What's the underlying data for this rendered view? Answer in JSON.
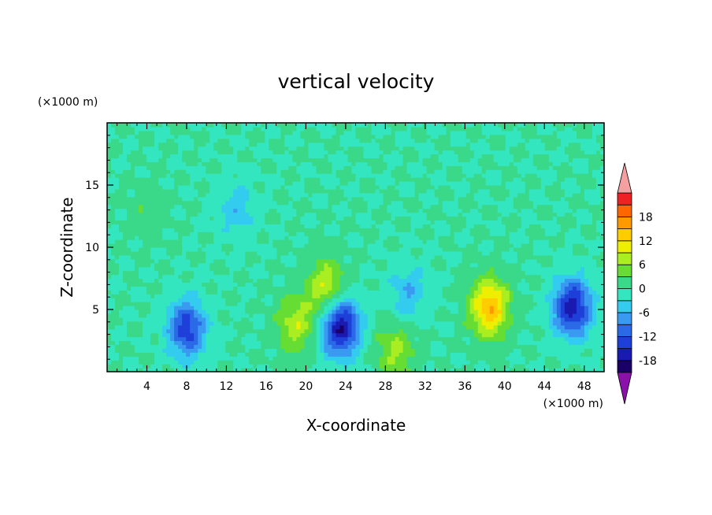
{
  "chart_data": {
    "type": "heatmap",
    "title": "vertical velocity",
    "xlabel": "X-coordinate",
    "ylabel": "Z-coordinate",
    "x_unit": "(×1000 m)",
    "y_unit": "(×1000 m)",
    "xlim": [
      0,
      50
    ],
    "ylim": [
      0,
      20
    ],
    "x_ticks": [
      "4",
      "8",
      "12",
      "16",
      "20",
      "24",
      "28",
      "32",
      "36",
      "40",
      "44",
      "48"
    ],
    "y_ticks": [
      "5",
      "10",
      "15"
    ],
    "colorbar": {
      "ticks": [
        "18",
        "12",
        "6",
        "0",
        "-6",
        "-12",
        "-18"
      ],
      "levels": [
        -21,
        -18,
        -15,
        -12,
        -9,
        -6,
        -3,
        0,
        3,
        6,
        9,
        12,
        15,
        18,
        21
      ],
      "colors": [
        "#1a0066",
        "#1a1ab0",
        "#1f3fd9",
        "#2a6ae6",
        "#3a99f0",
        "#33ccee",
        "#33e6bf",
        "#3ad98a",
        "#66dd33",
        "#aaee22",
        "#eeee00",
        "#ffcc00",
        "#ff9900",
        "#ff6600",
        "#ee2222"
      ],
      "under_color": "#8a12a8",
      "over_color": "#f5a0a0"
    },
    "features": [
      {
        "x": 8.0,
        "z": 3.5,
        "value": -14
      },
      {
        "x": 23.5,
        "z": 3.6,
        "value": -18
      },
      {
        "x": 46.8,
        "z": 5.2,
        "value": -17
      },
      {
        "x": 38.5,
        "z": 5.2,
        "value": 15
      },
      {
        "x": 19.0,
        "z": 3.8,
        "value": 8
      },
      {
        "x": 22.0,
        "z": 6.8,
        "value": 9
      },
      {
        "x": 29.0,
        "z": 1.8,
        "value": 7
      },
      {
        "x": 30.3,
        "z": 6.3,
        "value": -6
      },
      {
        "x": 13.0,
        "z": 13.0,
        "value": -5
      },
      {
        "x": 4.0,
        "z": 13.0,
        "value": 2
      }
    ]
  }
}
